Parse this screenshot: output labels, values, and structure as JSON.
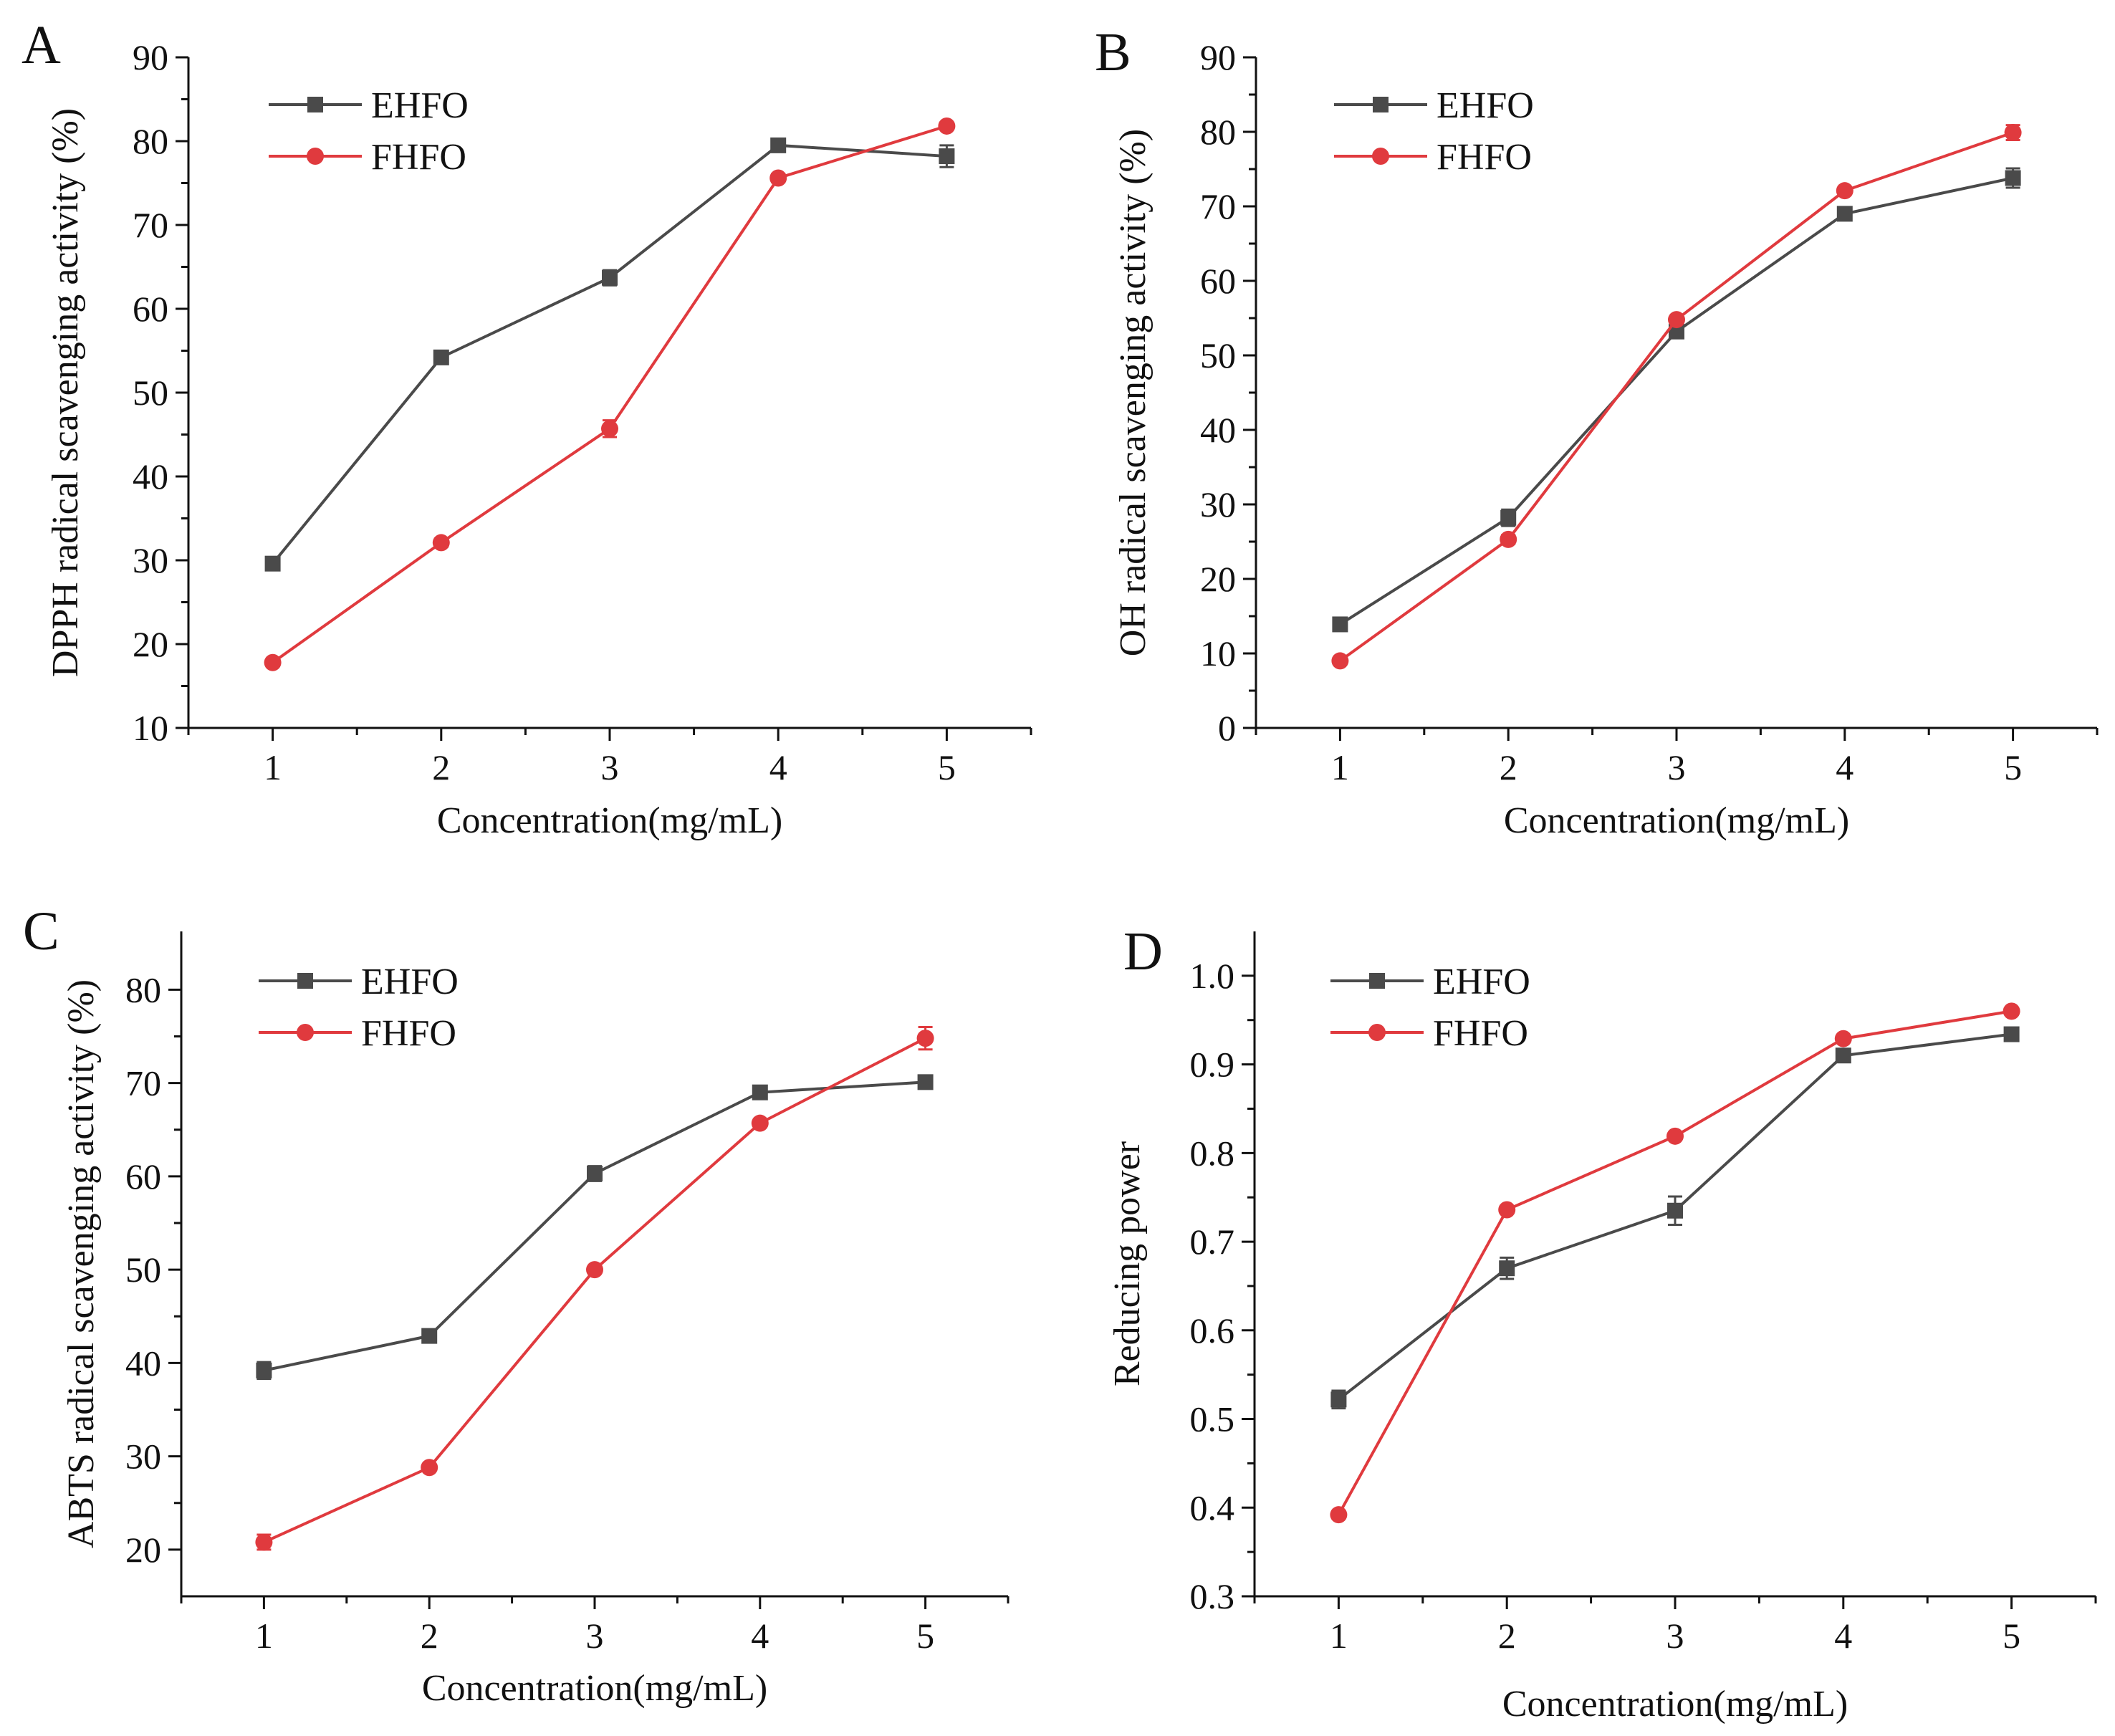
{
  "colors": {
    "EHFO": "#4a4a4a",
    "FHFO": "#e03a3e",
    "axis": "#111111"
  },
  "chart_data": [
    {
      "type": "line",
      "panel": "A",
      "xlabel": "Concentration(mg/mL)",
      "ylabel": "DPPH radical scavenging activity (%)",
      "x": [
        1,
        2,
        3,
        4,
        5
      ],
      "xlim": [
        0.5,
        5.5
      ],
      "ylim": [
        10,
        90
      ],
      "yticks": [
        10,
        20,
        30,
        40,
        50,
        60,
        70,
        80,
        90
      ],
      "ytick_labels": [
        "10",
        "20",
        "30",
        "40",
        "50",
        "60",
        "70",
        "80",
        "90"
      ],
      "xtick_labels": [
        "1",
        "2",
        "3",
        "4",
        "5"
      ],
      "legend_position": "top-left",
      "series": [
        {
          "name": "EHFO",
          "marker": "square",
          "values": [
            29.6,
            54.2,
            63.7,
            79.5,
            78.2
          ],
          "errors": [
            0.4,
            0.5,
            0.9,
            0.4,
            1.3
          ]
        },
        {
          "name": "FHFO",
          "marker": "circle",
          "values": [
            17.8,
            32.1,
            45.7,
            75.6,
            81.8
          ],
          "errors": [
            0.3,
            0.5,
            1.0,
            0.5,
            0.4
          ]
        }
      ]
    },
    {
      "type": "line",
      "panel": "B",
      "xlabel": "Concentration(mg/mL)",
      "ylabel": "OH radical scavenging activity (%)",
      "x": [
        1,
        2,
        3,
        4,
        5
      ],
      "xlim": [
        0.5,
        5.5
      ],
      "ylim": [
        0,
        90
      ],
      "yticks": [
        0,
        10,
        20,
        30,
        40,
        50,
        60,
        70,
        80,
        90
      ],
      "ytick_labels": [
        "0",
        "10",
        "20",
        "30",
        "40",
        "50",
        "60",
        "70",
        "80",
        "90"
      ],
      "xtick_labels": [
        "1",
        "2",
        "3",
        "4",
        "5"
      ],
      "legend_position": "top-left",
      "series": [
        {
          "name": "EHFO",
          "marker": "square",
          "values": [
            13.9,
            28.2,
            53.2,
            69.0,
            73.8
          ],
          "errors": [
            0.7,
            1.1,
            0.5,
            0.8,
            1.3
          ]
        },
        {
          "name": "FHFO",
          "marker": "circle",
          "values": [
            9.0,
            25.3,
            54.8,
            72.1,
            79.9
          ],
          "errors": [
            0.4,
            0.6,
            0.5,
            0.5,
            1.0
          ]
        }
      ]
    },
    {
      "type": "line",
      "panel": "C",
      "xlabel": "Concentration(mg/mL)",
      "ylabel": "ABTS radical scavenging activity (%)",
      "x": [
        1,
        2,
        3,
        4,
        5
      ],
      "xlim": [
        0.5,
        5.5
      ],
      "ylim": [
        15,
        86.25
      ],
      "yticks": [
        20,
        30,
        40,
        50,
        60,
        70,
        80
      ],
      "ytick_labels": [
        "20",
        "30",
        "40",
        "50",
        "60",
        "70",
        "80"
      ],
      "xtick_labels": [
        "1",
        "2",
        "3",
        "4",
        "5"
      ],
      "legend_position": "top-left",
      "series": [
        {
          "name": "EHFO",
          "marker": "square",
          "values": [
            39.2,
            42.9,
            60.3,
            69.0,
            70.1
          ],
          "errors": [
            0.9,
            0.6,
            0.8,
            0.3,
            0.3
          ]
        },
        {
          "name": "FHFO",
          "marker": "circle",
          "values": [
            20.8,
            28.8,
            50.0,
            65.7,
            74.8
          ],
          "errors": [
            0.8,
            0.3,
            0.3,
            0.3,
            1.2
          ]
        }
      ]
    },
    {
      "type": "line",
      "panel": "D",
      "xlabel": "Concentration(mg/mL)",
      "ylabel": "Reducing power",
      "x": [
        1,
        2,
        3,
        4,
        5
      ],
      "xlim": [
        0.5,
        5.5
      ],
      "ylim": [
        0.3,
        1.05
      ],
      "yticks": [
        0.3,
        0.4,
        0.5,
        0.6,
        0.7,
        0.8,
        0.9,
        1.0
      ],
      "ytick_labels": [
        "0.3",
        "0.4",
        "0.5",
        "0.6",
        "0.7",
        "0.8",
        "0.9",
        "1.0"
      ],
      "xtick_labels": [
        "1",
        "2",
        "3",
        "4",
        "5"
      ],
      "legend_position": "top-left",
      "series": [
        {
          "name": "EHFO",
          "marker": "square",
          "values": [
            0.522,
            0.67,
            0.735,
            0.91,
            0.934
          ],
          "errors": [
            0.01,
            0.012,
            0.016,
            0.005,
            0.004
          ]
        },
        {
          "name": "FHFO",
          "marker": "circle",
          "values": [
            0.392,
            0.736,
            0.819,
            0.929,
            0.96
          ],
          "errors": [
            0.004,
            0.004,
            0.004,
            0.004,
            0.004
          ]
        }
      ]
    }
  ]
}
